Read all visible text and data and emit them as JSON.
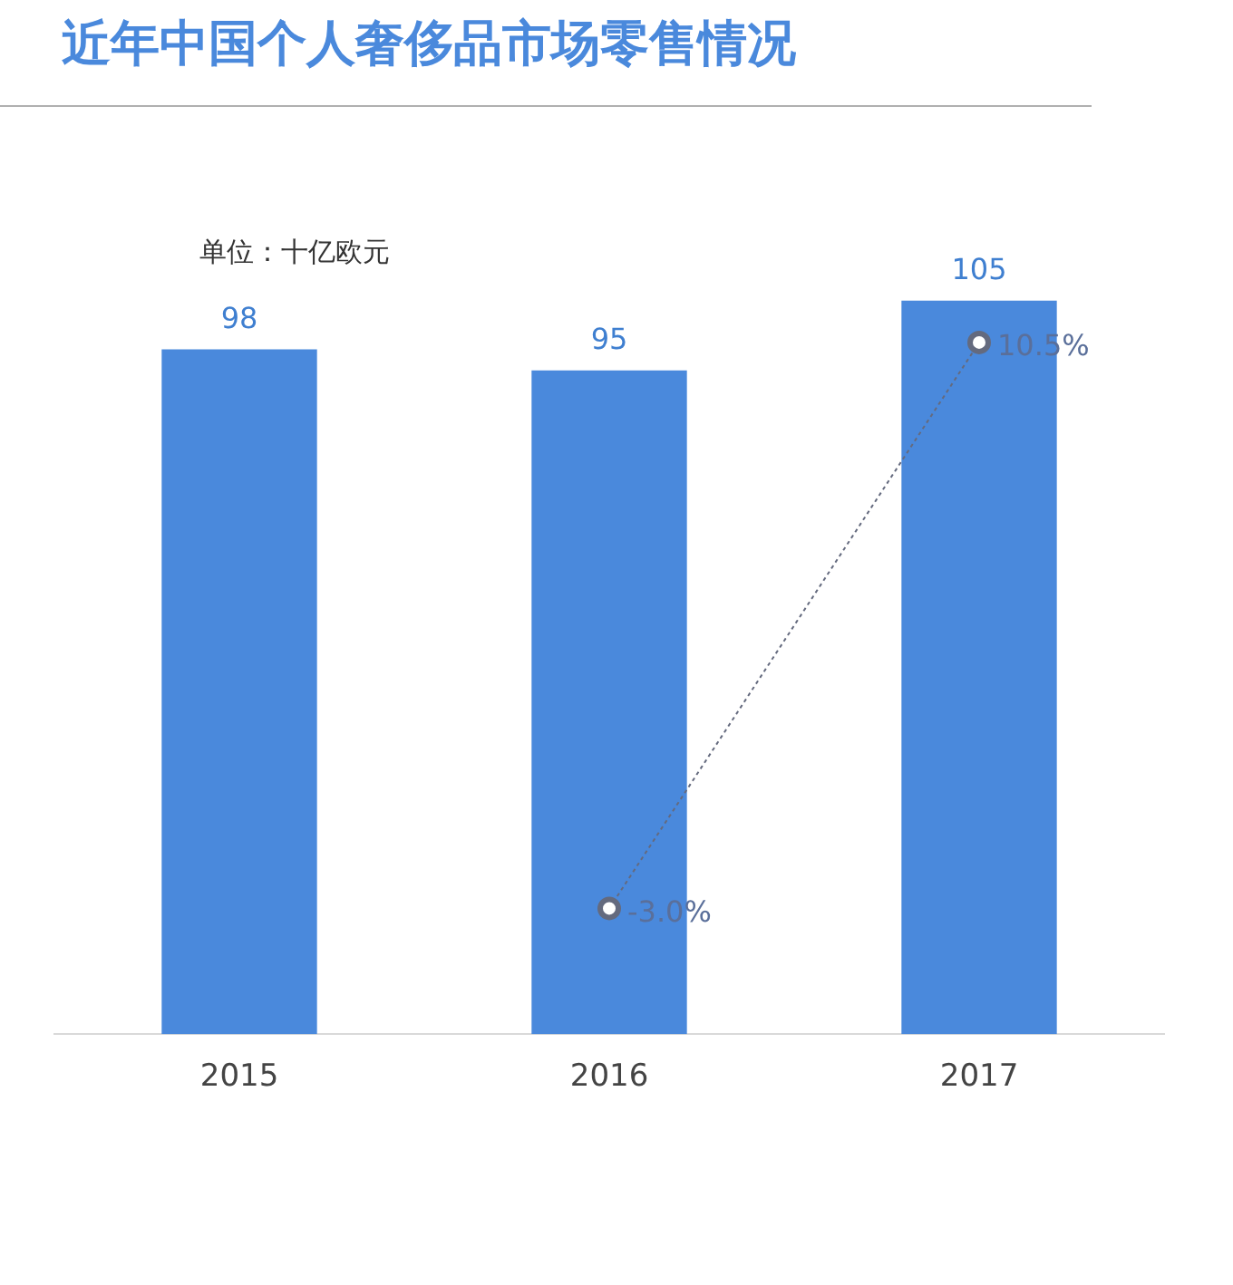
{
  "chart_data": {
    "type": "bar",
    "title": "近年中国个人奢侈品市场零售情况",
    "annotations": [
      "单位：十亿欧元"
    ],
    "categories": [
      "2015",
      "2016",
      "2017"
    ],
    "series": [
      {
        "color": "#4a89dc",
        "values": [
          98,
          95,
          105
        ]
      },
      {
        "type": "line",
        "axis": "y2",
        "color": "#646a7e",
        "marker": "circle",
        "line_style": "dotted",
        "values": [
          null,
          -3.0,
          10.5
        ],
        "value_labels": [
          null,
          "-3.0%",
          "10.5%"
        ]
      }
    ],
    "tick_labels": "x",
    "data_labels": true,
    "grid": false
  }
}
